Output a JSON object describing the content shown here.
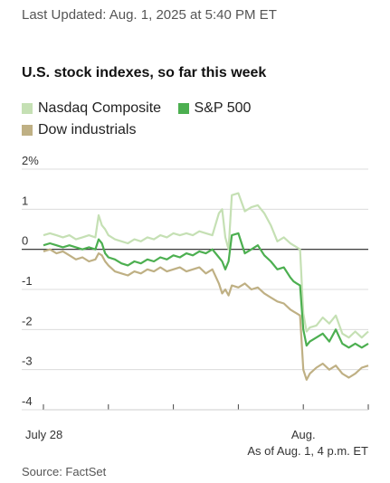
{
  "header": {
    "updated": "Last Updated: Aug. 1, 2025 at 5:40 PM ET"
  },
  "chart_data": {
    "type": "line",
    "title": "U.S. stock indexes, so far this week",
    "x_tick_labels": [
      "July 28",
      "Aug."
    ],
    "x_note": "As of Aug. 1, 4 p.m. ET",
    "y_tick_labels": [
      "2%",
      "1",
      "0",
      "-1",
      "-2",
      "-3",
      "-4"
    ],
    "y_ticks": [
      2,
      1,
      0,
      -1,
      -2,
      -3,
      -4
    ],
    "ylim": [
      -4,
      2
    ],
    "xlim": [
      0,
      5
    ],
    "grid": true,
    "legend_position": "top-left",
    "series": [
      {
        "name": "Nasdaq Composite",
        "color": "#c5e0b4",
        "x": [
          0,
          0.1,
          0.2,
          0.3,
          0.4,
          0.5,
          0.6,
          0.7,
          0.8,
          0.85,
          0.9,
          0.95,
          1.0,
          1.1,
          1.2,
          1.3,
          1.4,
          1.5,
          1.6,
          1.7,
          1.8,
          1.9,
          2.0,
          2.1,
          2.2,
          2.3,
          2.4,
          2.5,
          2.6,
          2.7,
          2.75,
          2.8,
          2.85,
          2.9,
          3.0,
          3.1,
          3.2,
          3.3,
          3.4,
          3.5,
          3.6,
          3.7,
          3.8,
          3.85,
          3.9,
          3.95,
          4.0,
          4.05,
          4.1,
          4.2,
          4.3,
          4.4,
          4.5,
          4.6,
          4.7,
          4.8,
          4.9,
          5.0
        ],
        "y": [
          0.35,
          0.4,
          0.35,
          0.3,
          0.35,
          0.25,
          0.3,
          0.35,
          0.3,
          0.85,
          0.6,
          0.5,
          0.35,
          0.25,
          0.2,
          0.15,
          0.25,
          0.2,
          0.3,
          0.25,
          0.35,
          0.3,
          0.4,
          0.35,
          0.4,
          0.35,
          0.45,
          0.4,
          0.35,
          0.9,
          1.0,
          0.3,
          0.0,
          1.35,
          1.4,
          0.95,
          1.05,
          1.1,
          0.9,
          0.6,
          0.2,
          0.3,
          0.15,
          0.1,
          0.05,
          0.0,
          -1.6,
          -2.05,
          -1.95,
          -1.9,
          -1.7,
          -1.85,
          -1.65,
          -2.1,
          -2.2,
          -2.05,
          -2.2,
          -2.05
        ]
      },
      {
        "name": "S&P 500",
        "color": "#4caf50",
        "x": [
          0,
          0.1,
          0.2,
          0.3,
          0.4,
          0.5,
          0.6,
          0.7,
          0.8,
          0.85,
          0.9,
          0.95,
          1.0,
          1.1,
          1.2,
          1.3,
          1.4,
          1.5,
          1.6,
          1.7,
          1.8,
          1.9,
          2.0,
          2.1,
          2.2,
          2.3,
          2.4,
          2.5,
          2.6,
          2.7,
          2.75,
          2.8,
          2.85,
          2.9,
          3.0,
          3.1,
          3.2,
          3.3,
          3.4,
          3.5,
          3.6,
          3.7,
          3.8,
          3.85,
          3.9,
          3.95,
          4.0,
          4.05,
          4.1,
          4.2,
          4.3,
          4.4,
          4.5,
          4.6,
          4.7,
          4.8,
          4.9,
          5.0
        ],
        "y": [
          0.1,
          0.15,
          0.1,
          0.05,
          0.1,
          0.05,
          0.0,
          0.05,
          0.0,
          0.25,
          0.15,
          -0.1,
          -0.2,
          -0.25,
          -0.35,
          -0.4,
          -0.3,
          -0.35,
          -0.25,
          -0.3,
          -0.2,
          -0.25,
          -0.15,
          -0.2,
          -0.1,
          -0.15,
          -0.05,
          -0.1,
          0.0,
          -0.2,
          -0.3,
          -0.5,
          -0.3,
          0.35,
          0.4,
          -0.1,
          0.0,
          0.1,
          -0.15,
          -0.3,
          -0.5,
          -0.45,
          -0.7,
          -0.8,
          -0.85,
          -0.9,
          -2.0,
          -2.4,
          -2.3,
          -2.2,
          -2.1,
          -2.3,
          -2.0,
          -2.35,
          -2.45,
          -2.35,
          -2.45,
          -2.35
        ]
      },
      {
        "name": "Dow industrials",
        "color": "#bfb084",
        "x": [
          0,
          0.1,
          0.2,
          0.3,
          0.4,
          0.5,
          0.6,
          0.7,
          0.8,
          0.85,
          0.9,
          0.95,
          1.0,
          1.1,
          1.2,
          1.3,
          1.4,
          1.5,
          1.6,
          1.7,
          1.8,
          1.9,
          2.0,
          2.1,
          2.2,
          2.3,
          2.4,
          2.5,
          2.6,
          2.7,
          2.75,
          2.8,
          2.85,
          2.9,
          3.0,
          3.1,
          3.2,
          3.3,
          3.4,
          3.5,
          3.6,
          3.7,
          3.8,
          3.85,
          3.9,
          3.95,
          4.0,
          4.05,
          4.1,
          4.2,
          4.3,
          4.4,
          4.5,
          4.6,
          4.7,
          4.8,
          4.9,
          5.0
        ],
        "y": [
          -0.05,
          0.0,
          -0.1,
          -0.05,
          -0.15,
          -0.25,
          -0.2,
          -0.3,
          -0.25,
          -0.1,
          -0.15,
          -0.3,
          -0.4,
          -0.55,
          -0.6,
          -0.65,
          -0.55,
          -0.6,
          -0.5,
          -0.55,
          -0.45,
          -0.55,
          -0.5,
          -0.45,
          -0.55,
          -0.5,
          -0.45,
          -0.6,
          -0.5,
          -0.85,
          -1.1,
          -1.0,
          -1.15,
          -0.9,
          -0.95,
          -0.85,
          -1.0,
          -0.95,
          -1.1,
          -1.2,
          -1.3,
          -1.35,
          -1.5,
          -1.55,
          -1.6,
          -1.65,
          -3.0,
          -3.25,
          -3.1,
          -2.95,
          -2.85,
          -3.0,
          -2.9,
          -3.1,
          -3.2,
          -3.1,
          -2.95,
          -2.9
        ]
      }
    ]
  },
  "footer": {
    "source": "Source: FactSet"
  }
}
